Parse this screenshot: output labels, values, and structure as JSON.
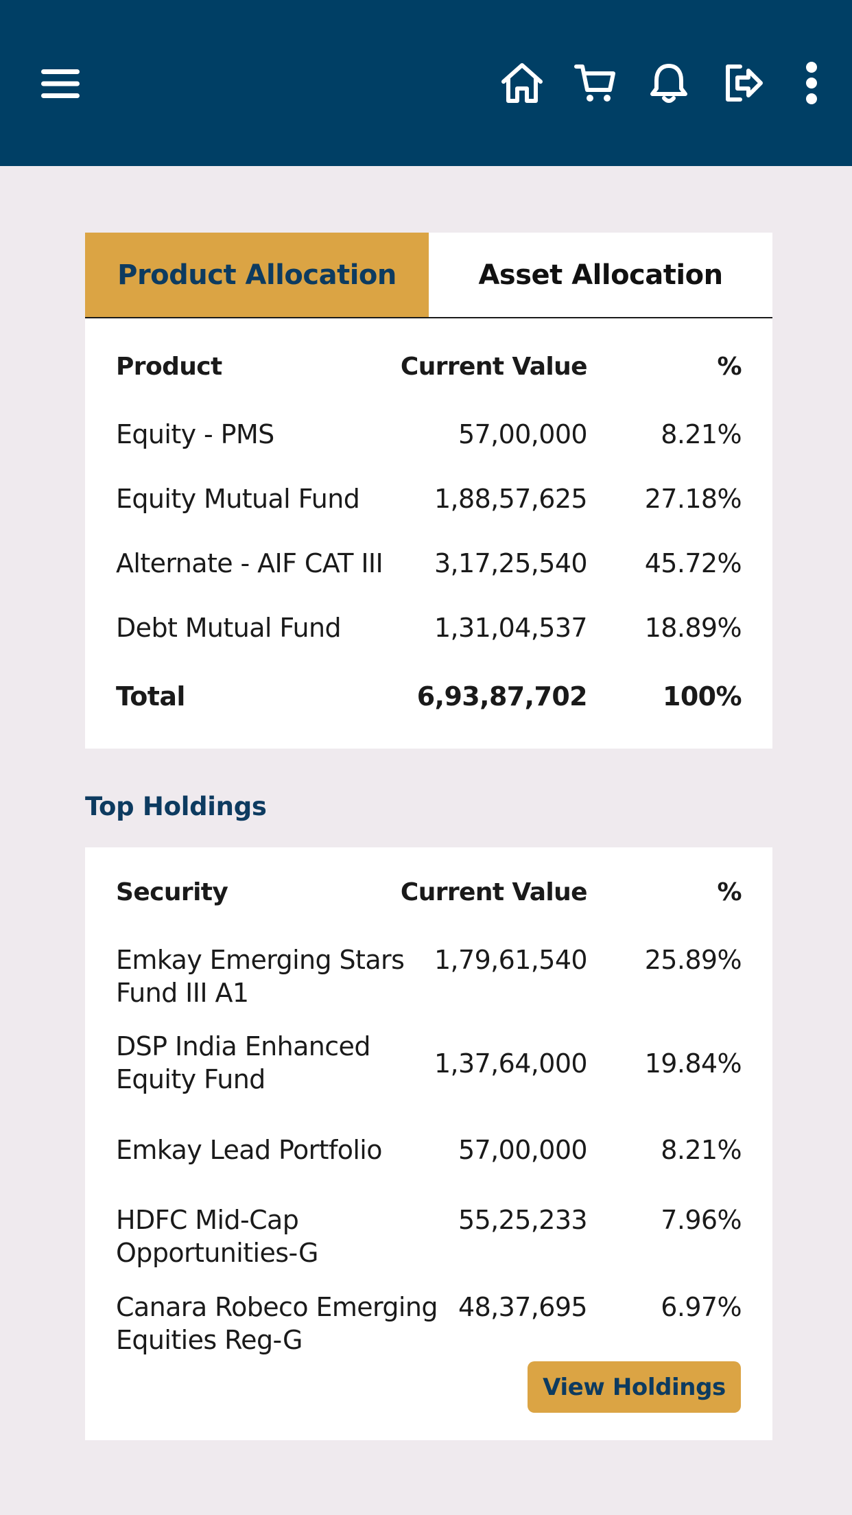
{
  "app_bar": {
    "icons": [
      "menu-icon",
      "home-icon",
      "cart-icon",
      "bell-icon",
      "logout-icon",
      "more-vertical-icon"
    ],
    "background": "#003f65"
  },
  "allocation": {
    "tabs": [
      {
        "label": "Product Allocation",
        "active": true
      },
      {
        "label": "Asset Allocation",
        "active": false
      }
    ],
    "headers": {
      "name": "Product",
      "value": "Current Value",
      "pct": "%"
    },
    "rows": [
      {
        "name": "Equity - PMS",
        "value": "57,00,000",
        "pct": "8.21%"
      },
      {
        "name": "Equity Mutual Fund",
        "value": "1,88,57,625",
        "pct": "27.18%"
      },
      {
        "name": "Alternate - AIF CAT III",
        "value": "3,17,25,540",
        "pct": "45.72%"
      },
      {
        "name": "Debt Mutual Fund",
        "value": "1,31,04,537",
        "pct": "18.89%"
      }
    ],
    "total": {
      "name": "Total",
      "value": "6,93,87,702",
      "pct": "100%"
    }
  },
  "holdings": {
    "title": "Top Holdings",
    "headers": {
      "name": "Security",
      "value": "Current Value",
      "pct": "%"
    },
    "rows": [
      {
        "name": "Emkay Emerging Stars Fund III A1",
        "value": "1,79,61,540",
        "pct": "25.89%"
      },
      {
        "name": "DSP India Enhanced Equity Fund",
        "value": "1,37,64,000",
        "pct": "19.84%"
      },
      {
        "name": "Emkay Lead Portfolio",
        "value": "57,00,000",
        "pct": "8.21%"
      },
      {
        "name": "HDFC Mid-Cap Opportunities-G",
        "value": "55,25,233",
        "pct": "7.96%"
      },
      {
        "name": "Canara Robeco Emerging Equities Reg-G",
        "value": "48,37,695",
        "pct": "6.97%"
      }
    ],
    "button_label": "View Holdings"
  },
  "colors": {
    "primary": "#003f65",
    "accent": "#dba444",
    "background": "#efeaee",
    "title_text": "#0d3b60"
  }
}
